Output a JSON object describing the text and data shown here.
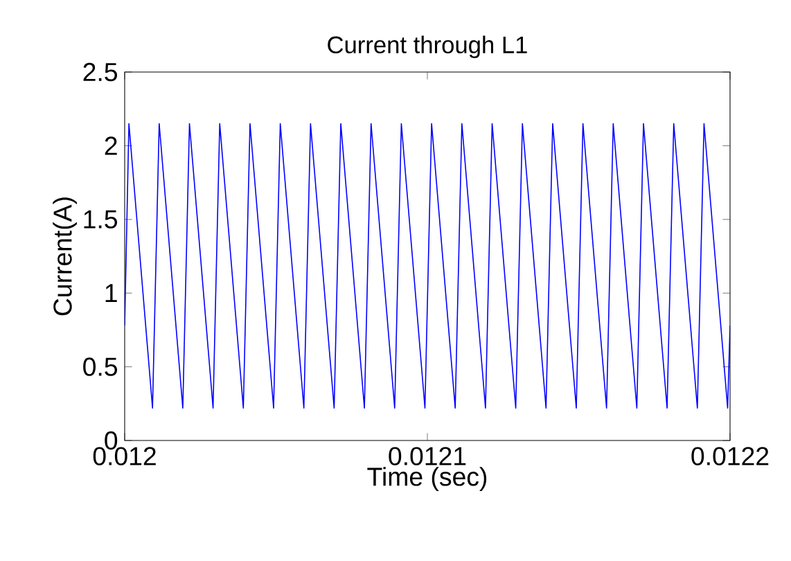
{
  "chart_data": {
    "type": "line",
    "title": "Current through L1",
    "xlabel": "Time (sec)",
    "ylabel": "Current(A)",
    "xlim": [
      0.012,
      0.0122
    ],
    "xticks": [
      0.012,
      0.0121,
      0.0122
    ],
    "ylim": [
      0,
      2.5
    ],
    "yticks": [
      0,
      0.5,
      1,
      1.5,
      2,
      2.5
    ],
    "grid": false,
    "series": [
      {
        "color": "#0000ff",
        "x": [
          0.012,
          0.0120014,
          0.0120092,
          0.0120114,
          0.0120192,
          0.0120214,
          0.0120292,
          0.0120314,
          0.0120392,
          0.0120414,
          0.0120492,
          0.0120514,
          0.0120592,
          0.0120614,
          0.0120692,
          0.0120714,
          0.0120792,
          0.0120814,
          0.0120892,
          0.0120914,
          0.0120992,
          0.0121014,
          0.0121092,
          0.0121114,
          0.0121192,
          0.0121214,
          0.0121292,
          0.0121314,
          0.0121392,
          0.0121414,
          0.0121492,
          0.0121514,
          0.0121592,
          0.0121614,
          0.0121692,
          0.0121714,
          0.0121792,
          0.0121814,
          0.0121892,
          0.0121914,
          0.0121992,
          0.0122
        ],
        "values": [
          0.78,
          2.15,
          0.22,
          2.15,
          0.22,
          2.15,
          0.22,
          2.15,
          0.22,
          2.15,
          0.22,
          2.15,
          0.22,
          2.15,
          0.22,
          2.15,
          0.22,
          2.15,
          0.22,
          2.15,
          0.22,
          2.15,
          0.22,
          2.15,
          0.22,
          2.15,
          0.22,
          2.15,
          0.22,
          2.15,
          0.22,
          2.15,
          0.22,
          2.15,
          0.22,
          2.15,
          0.22,
          2.15,
          0.22,
          2.15,
          0.22,
          0.78
        ]
      }
    ]
  }
}
